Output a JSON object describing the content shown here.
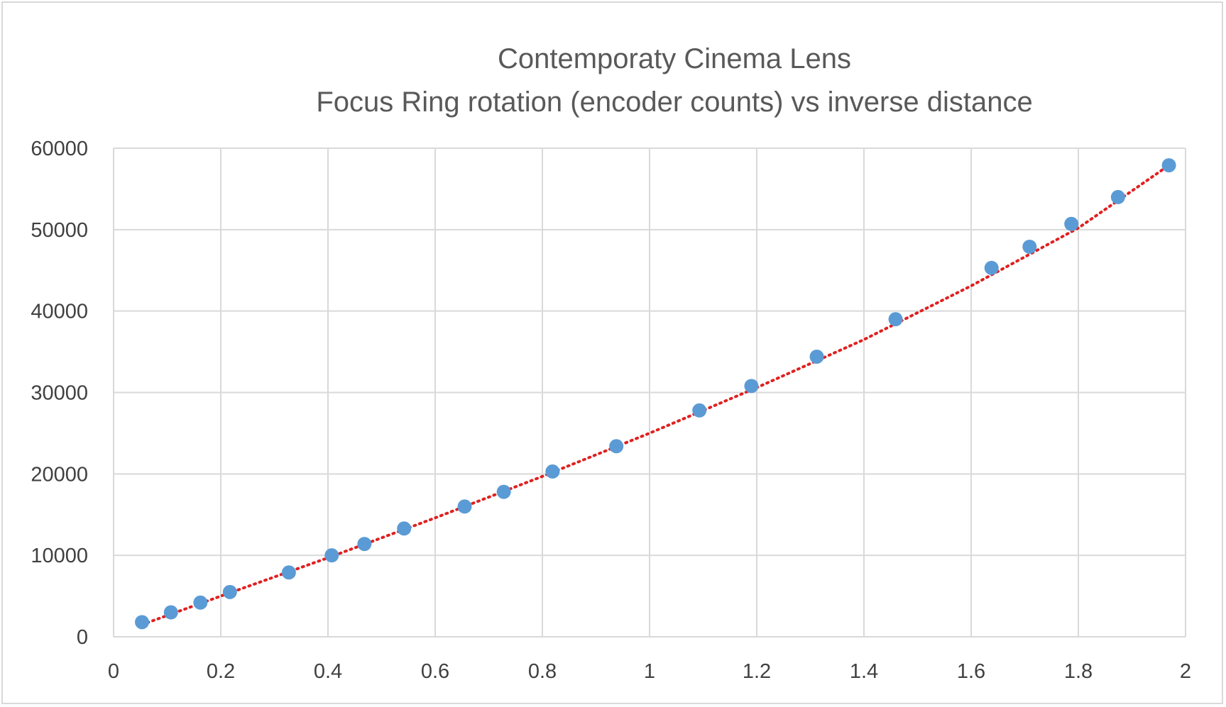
{
  "chart_data": {
    "type": "scatter",
    "title": [
      "Contemporaty  Cinema Lens",
      "Focus Ring rotation (encoder counts) vs inverse distance"
    ],
    "xlabel": "",
    "ylabel": "",
    "xlim": [
      0,
      2
    ],
    "ylim": [
      0,
      60000
    ],
    "x_ticks": [
      0,
      0.2,
      0.4,
      0.6,
      0.8,
      1,
      1.2,
      1.4,
      1.6,
      1.8,
      2
    ],
    "y_ticks": [
      0,
      10000,
      20000,
      30000,
      40000,
      50000,
      60000
    ],
    "grid": true,
    "legend": "none",
    "series": [
      {
        "marker_color": "#5b9bd5",
        "points": [
          [
            0.053,
            1800
          ],
          [
            0.107,
            3000
          ],
          [
            0.162,
            4200
          ],
          [
            0.217,
            5500
          ],
          [
            0.327,
            7900
          ],
          [
            0.407,
            10000
          ],
          [
            0.468,
            11400
          ],
          [
            0.542,
            13300
          ],
          [
            0.655,
            16000
          ],
          [
            0.728,
            17800
          ],
          [
            0.819,
            20300
          ],
          [
            0.938,
            23400
          ],
          [
            1.093,
            27800
          ],
          [
            1.19,
            30800
          ],
          [
            1.312,
            34400
          ],
          [
            1.459,
            39000
          ],
          [
            1.638,
            45300
          ],
          [
            1.709,
            47900
          ],
          [
            1.787,
            50700
          ],
          [
            1.874,
            54000
          ],
          [
            1.969,
            57900
          ]
        ]
      }
    ],
    "trendline": {
      "style": "dotted",
      "color": "#e02020",
      "points": [
        [
          0.053,
          1500
        ],
        [
          0.2,
          5000
        ],
        [
          0.4,
          9700
        ],
        [
          0.6,
          14600
        ],
        [
          0.8,
          19700
        ],
        [
          1.0,
          25000
        ],
        [
          1.2,
          30600
        ],
        [
          1.4,
          36500
        ],
        [
          1.6,
          43100
        ],
        [
          1.8,
          50200
        ],
        [
          1.969,
          57900
        ]
      ]
    }
  }
}
